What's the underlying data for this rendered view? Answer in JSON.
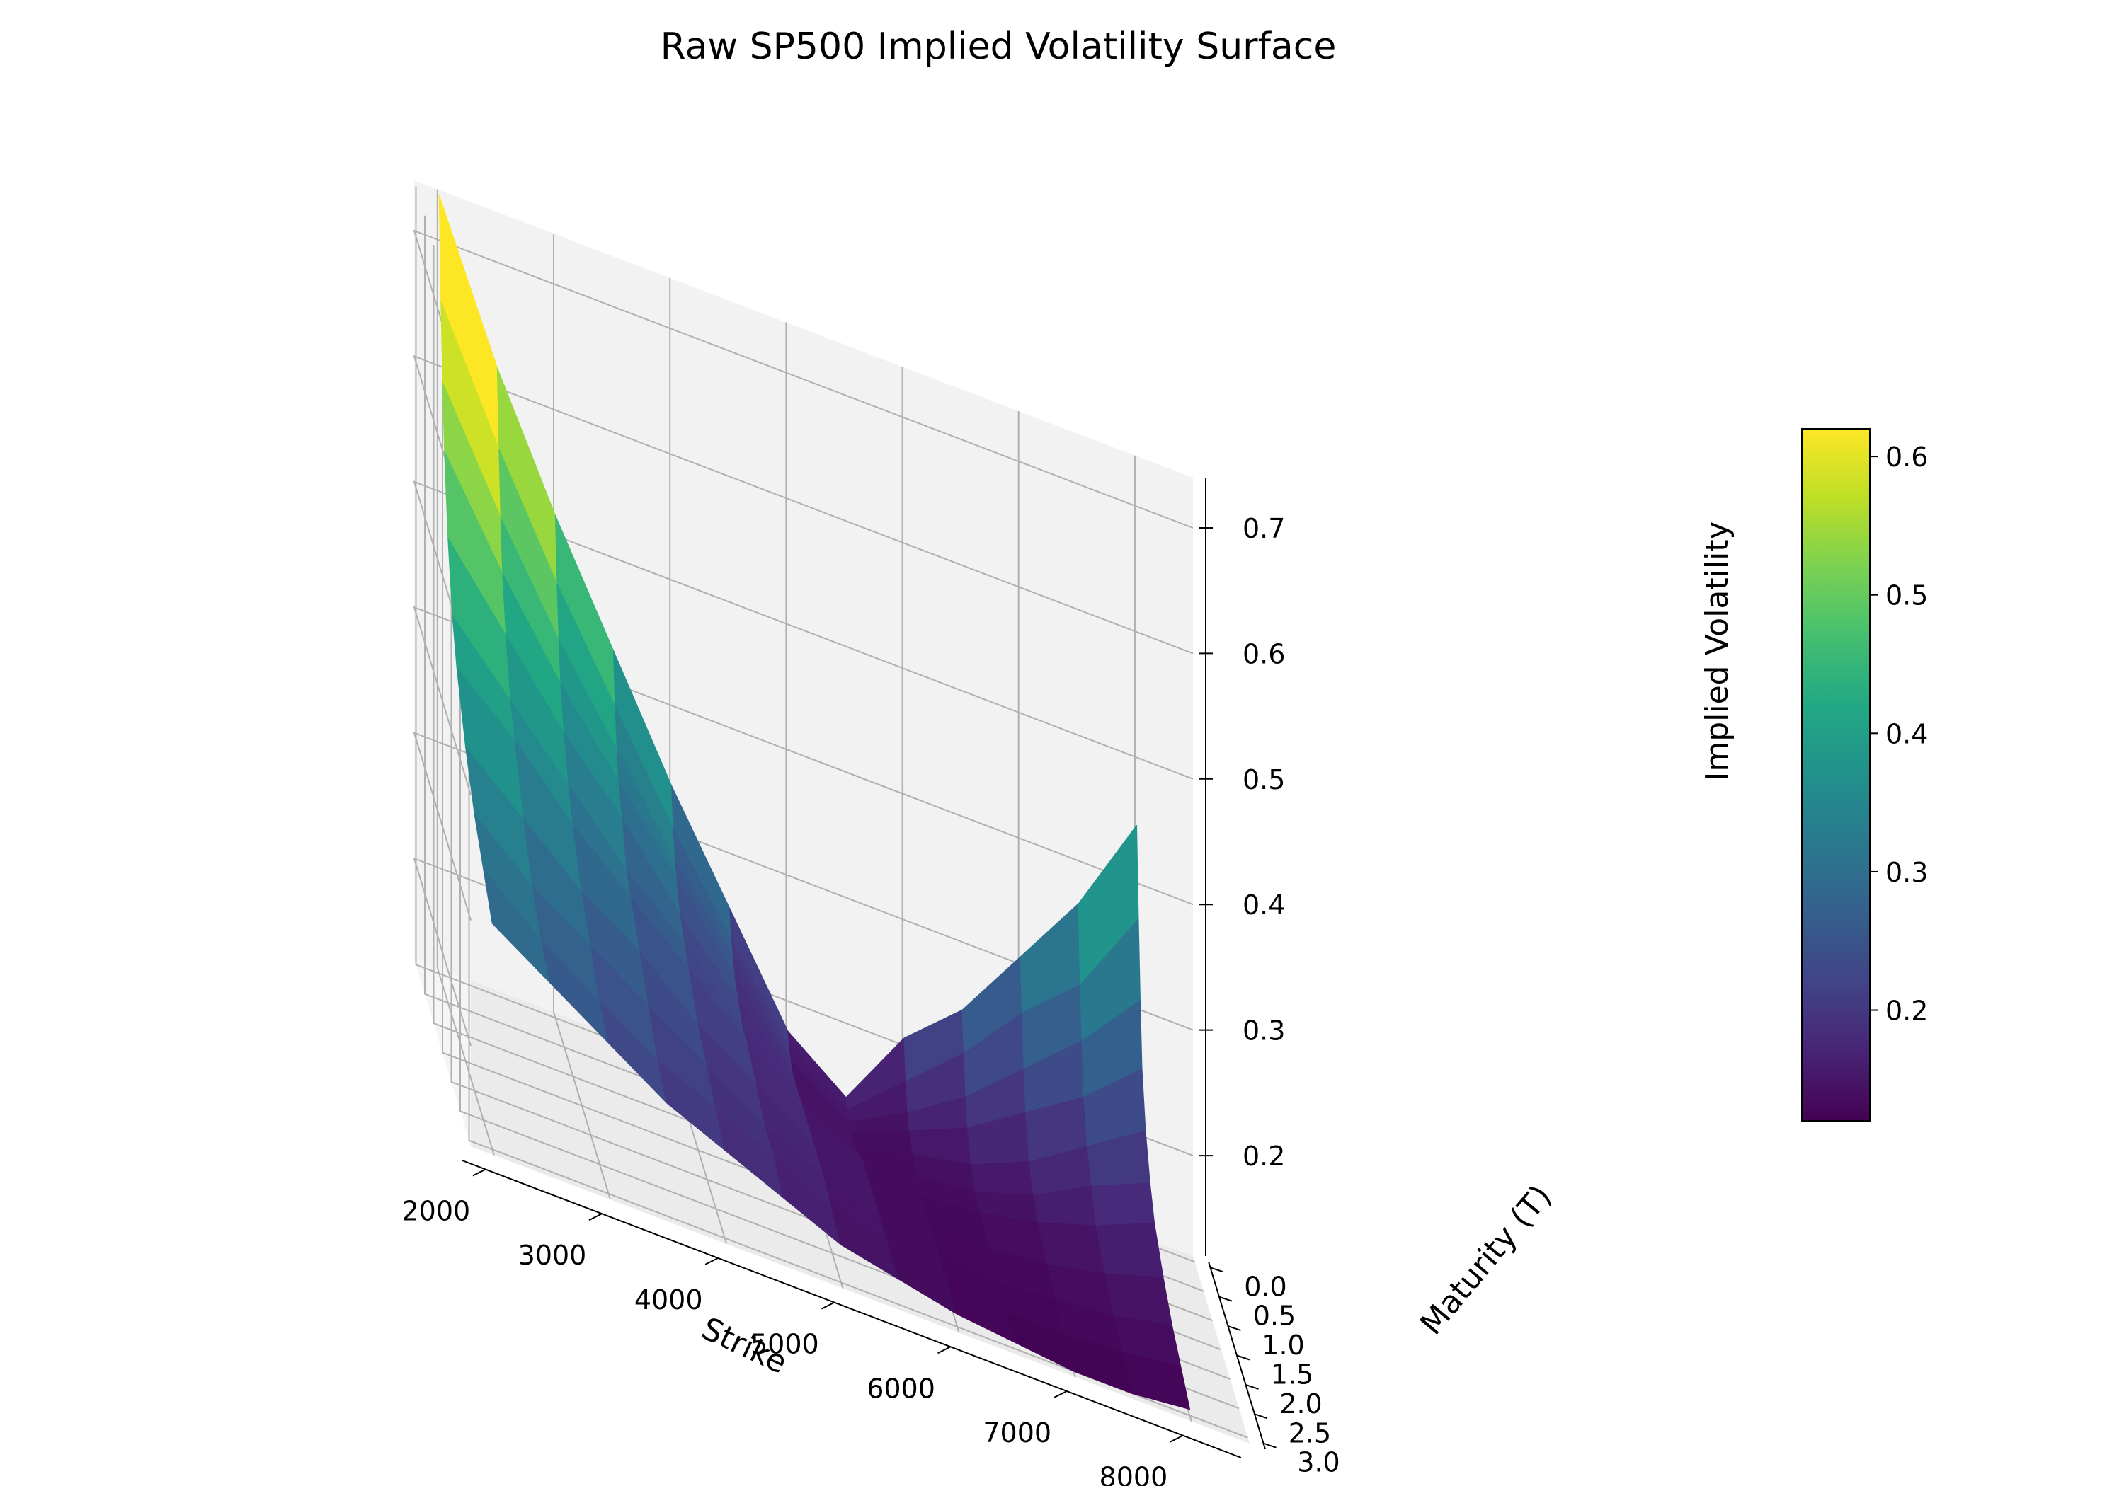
{
  "chart_data": {
    "type": "surface",
    "title": "Raw SP500 Implied Volatility Surface",
    "xlabel": "Strike",
    "ylabel": "Maturity (T)",
    "zlabel": "Implied Volatility",
    "xlim": [
      1800,
      8500
    ],
    "ylim": [
      -0.1,
      3.1
    ],
    "zlim": [
      0.12,
      0.74
    ],
    "x_ticks": [
      2000,
      3000,
      4000,
      5000,
      6000,
      7000,
      8000
    ],
    "y_ticks": [
      0.0,
      0.5,
      1.0,
      1.5,
      2.0,
      2.5,
      3.0
    ],
    "z_ticks": [
      0.2,
      0.3,
      0.4,
      0.5,
      0.6,
      0.7
    ],
    "grid": true,
    "colormap": "viridis",
    "colorbar": {
      "ticks": [
        0.2,
        0.3,
        0.4,
        0.5,
        0.6
      ],
      "range": [
        0.12,
        0.62
      ]
    },
    "strikes": [
      2000,
      2500,
      3000,
      3500,
      4000,
      4500,
      5000,
      5500,
      6000,
      6500,
      7000,
      7500,
      8000
    ],
    "maturities": [
      0.0,
      0.1,
      0.2,
      0.3,
      0.5,
      0.75,
      1.0,
      1.5,
      2.0,
      2.5,
      3.0
    ],
    "iv_grid": [
      [
        0.74,
        0.62,
        0.52,
        0.43,
        0.34,
        0.26,
        0.18,
        0.145,
        0.21,
        0.25,
        0.31,
        0.37,
        0.45
      ],
      [
        0.66,
        0.56,
        0.47,
        0.39,
        0.31,
        0.24,
        0.17,
        0.14,
        0.18,
        0.22,
        0.27,
        0.31,
        0.38
      ],
      [
        0.6,
        0.51,
        0.43,
        0.36,
        0.29,
        0.23,
        0.165,
        0.135,
        0.16,
        0.19,
        0.23,
        0.27,
        0.32
      ],
      [
        0.55,
        0.47,
        0.4,
        0.34,
        0.28,
        0.22,
        0.16,
        0.13,
        0.15,
        0.17,
        0.2,
        0.23,
        0.27
      ],
      [
        0.49,
        0.43,
        0.37,
        0.32,
        0.26,
        0.21,
        0.16,
        0.13,
        0.14,
        0.15,
        0.17,
        0.2,
        0.23
      ],
      [
        0.44,
        0.39,
        0.34,
        0.29,
        0.25,
        0.2,
        0.16,
        0.135,
        0.135,
        0.14,
        0.155,
        0.18,
        0.2
      ],
      [
        0.41,
        0.37,
        0.32,
        0.28,
        0.24,
        0.2,
        0.16,
        0.14,
        0.13,
        0.135,
        0.145,
        0.16,
        0.18
      ],
      [
        0.37,
        0.33,
        0.29,
        0.26,
        0.22,
        0.19,
        0.16,
        0.14,
        0.13,
        0.13,
        0.135,
        0.145,
        0.16
      ],
      [
        0.34,
        0.3,
        0.27,
        0.24,
        0.21,
        0.18,
        0.16,
        0.14,
        0.13,
        0.125,
        0.13,
        0.135,
        0.145
      ],
      [
        0.32,
        0.28,
        0.25,
        0.22,
        0.2,
        0.18,
        0.155,
        0.14,
        0.13,
        0.125,
        0.125,
        0.13,
        0.135
      ],
      [
        0.3,
        0.27,
        0.24,
        0.21,
        0.19,
        0.17,
        0.15,
        0.14,
        0.13,
        0.125,
        0.12,
        0.12,
        0.125
      ]
    ]
  }
}
